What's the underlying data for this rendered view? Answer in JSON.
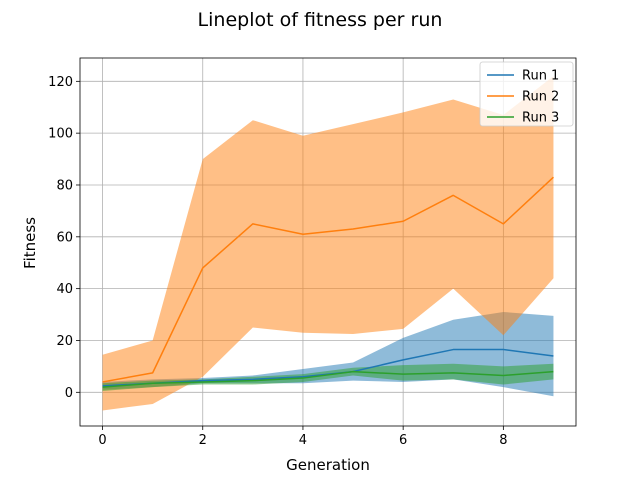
{
  "chart_data": {
    "type": "line",
    "title": "Lineplot of fitness per run",
    "xlabel": "Generation",
    "ylabel": "Fitness",
    "xlim": [
      -0.45,
      9.45
    ],
    "ylim": [
      -13,
      129
    ],
    "xticks": [
      0,
      2,
      4,
      6,
      8
    ],
    "yticks": [
      0,
      20,
      40,
      60,
      80,
      100,
      120
    ],
    "grid": true,
    "legend_position": "top-right",
    "x": [
      0,
      1,
      2,
      3,
      4,
      5,
      6,
      7,
      8,
      9
    ],
    "series": [
      {
        "name": "Run 1",
        "color": "#1f77b4",
        "values": [
          2.5,
          3.5,
          4.5,
          5.0,
          6.0,
          8.0,
          12.5,
          16.5,
          16.5,
          14.0
        ],
        "band_lower": [
          1.0,
          2.0,
          3.5,
          3.5,
          3.5,
          4.5,
          4.0,
          5.0,
          2.0,
          -1.5
        ],
        "band_upper": [
          4.0,
          5.0,
          5.5,
          6.5,
          9.0,
          11.5,
          21.0,
          28.0,
          31.0,
          29.5
        ]
      },
      {
        "name": "Run 2",
        "color": "#ff7f0e",
        "values": [
          4.0,
          7.5,
          48.0,
          65.0,
          61.0,
          63.0,
          66.0,
          76.0,
          65.0,
          83.0
        ],
        "band_lower": [
          -7.0,
          -4.5,
          6.0,
          25.0,
          23.0,
          22.5,
          24.5,
          40.0,
          22.0,
          44.0
        ],
        "band_upper": [
          14.5,
          20.0,
          90.0,
          105.0,
          99.0,
          103.5,
          108.0,
          113.0,
          107.0,
          122.0
        ]
      },
      {
        "name": "Run 3",
        "color": "#2ca02c",
        "values": [
          2.0,
          3.5,
          4.0,
          4.5,
          5.5,
          8.0,
          7.0,
          7.5,
          6.5,
          8.0
        ],
        "band_lower": [
          0.5,
          2.0,
          3.0,
          3.0,
          4.0,
          6.5,
          4.5,
          5.0,
          3.0,
          5.0
        ],
        "band_upper": [
          3.5,
          4.5,
          5.0,
          6.0,
          7.0,
          9.5,
          10.5,
          11.0,
          10.0,
          11.0
        ]
      }
    ]
  }
}
